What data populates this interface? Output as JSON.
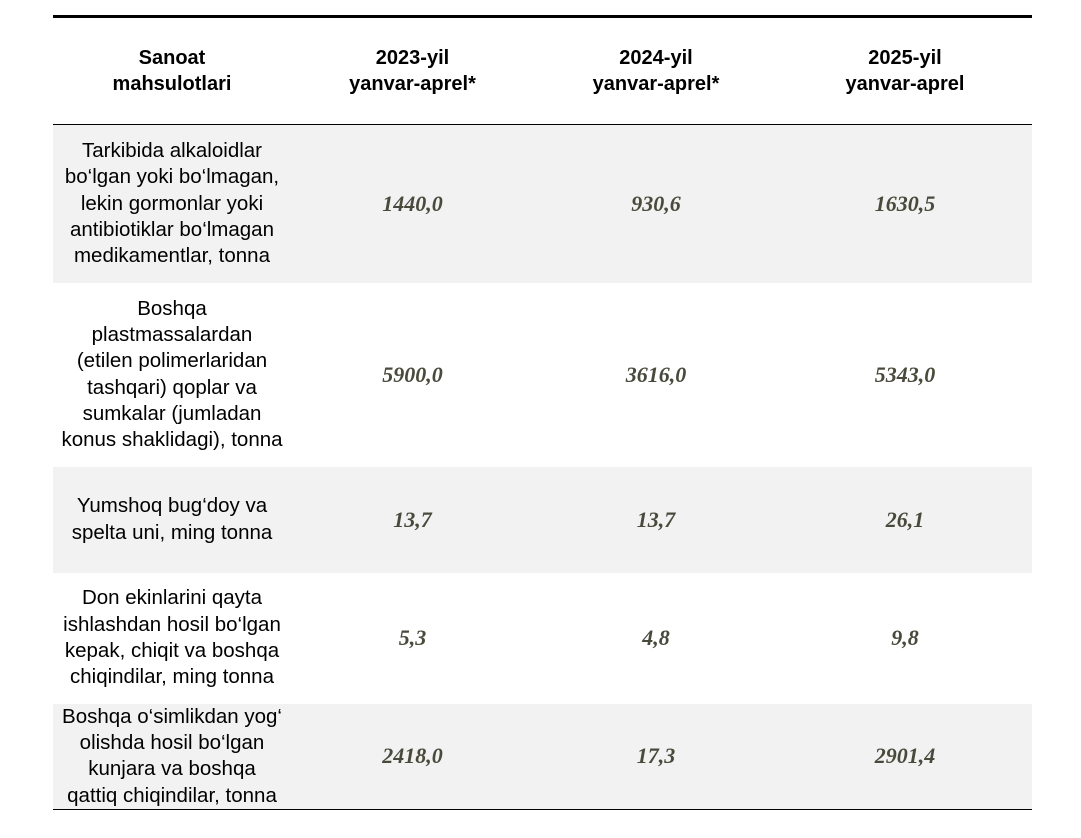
{
  "table": {
    "headers": [
      "Sanoat\nmahsulotlari",
      "2023-yil\nyanvar-aprel*",
      "2024-yil\nyanvar-aprel*",
      "2025-yil\nyanvar-aprel"
    ],
    "rows": [
      {
        "name": "Tarkibida alkaloidlar\nbo‘lgan yoki bo‘lmagan,\nlekin gormonlar yoki\nantibiotiklar bo‘lmagan\nmedikamentlar, tonna",
        "values": [
          "1440,0",
          "930,6",
          "1630,5"
        ]
      },
      {
        "name": "Boshqa\nplastmassalardan\n(etilen polimerlaridan\ntashqari) qoplar va\nsumkalar (jumladan\nkonus shaklidagi), tonna",
        "values": [
          "5900,0",
          "3616,0",
          "5343,0"
        ]
      },
      {
        "name": "Yumshoq bug‘doy va\nspelta uni, ming tonna",
        "values": [
          "13,7",
          "13,7",
          "26,1"
        ]
      },
      {
        "name": "Don ekinlarini qayta\nishlashdan hosil bo‘lgan\nkepak, chiqit va boshqa\nchiqindilar, ming tonna",
        "values": [
          "5,3",
          "4,8",
          "9,8"
        ]
      },
      {
        "name": "Boshqa o‘simlikdan yog‘\nolishda hosil bo‘lgan\nkunjara va boshqa\nqattiq chiqindilar, tonna",
        "values": [
          "2418,0",
          "17,3",
          "2901,4"
        ]
      }
    ]
  }
}
